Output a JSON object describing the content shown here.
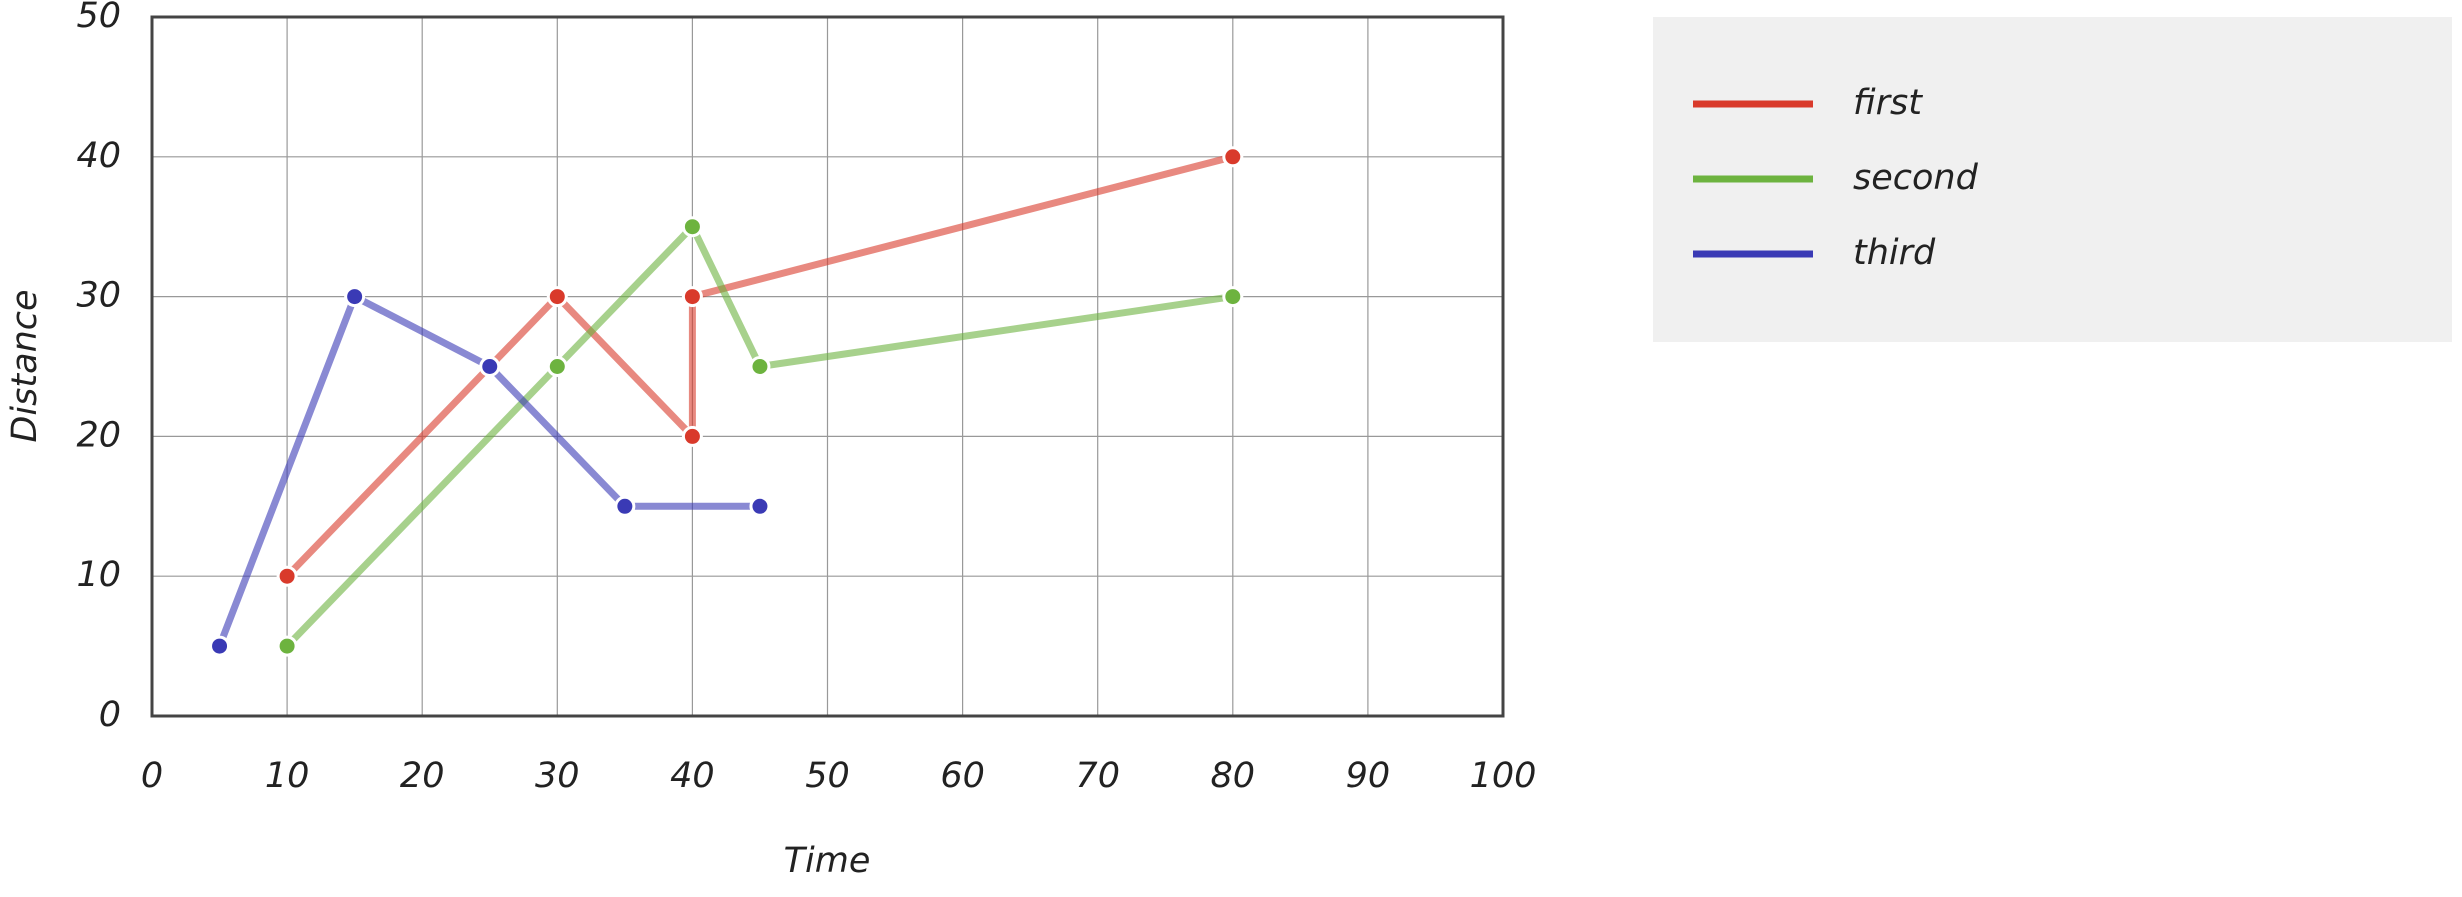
{
  "chart_data": {
    "type": "line",
    "x_label": "Time",
    "y_label": "Distance",
    "xlim": [
      0,
      100
    ],
    "xticks": [
      0,
      10,
      20,
      30,
      40,
      50,
      60,
      70,
      80,
      90,
      100
    ],
    "ylim": [
      0,
      50
    ],
    "yticks": [
      0,
      10,
      20,
      30,
      40,
      50
    ],
    "grid": true,
    "legend": "right",
    "series": [
      {
        "name": "first",
        "color": "#d93a2b",
        "x": [
          10,
          30,
          40,
          40,
          80
        ],
        "values": [
          10,
          30,
          20,
          30,
          40
        ]
      },
      {
        "name": "second",
        "color": "#6db33f",
        "x": [
          10,
          30,
          40,
          45,
          80
        ],
        "values": [
          5,
          25,
          35,
          25,
          30
        ]
      },
      {
        "name": "third",
        "color": "#3a3ab5",
        "x": [
          5,
          15,
          25,
          35,
          45
        ],
        "values": [
          5,
          30,
          25,
          15,
          15
        ]
      }
    ]
  }
}
